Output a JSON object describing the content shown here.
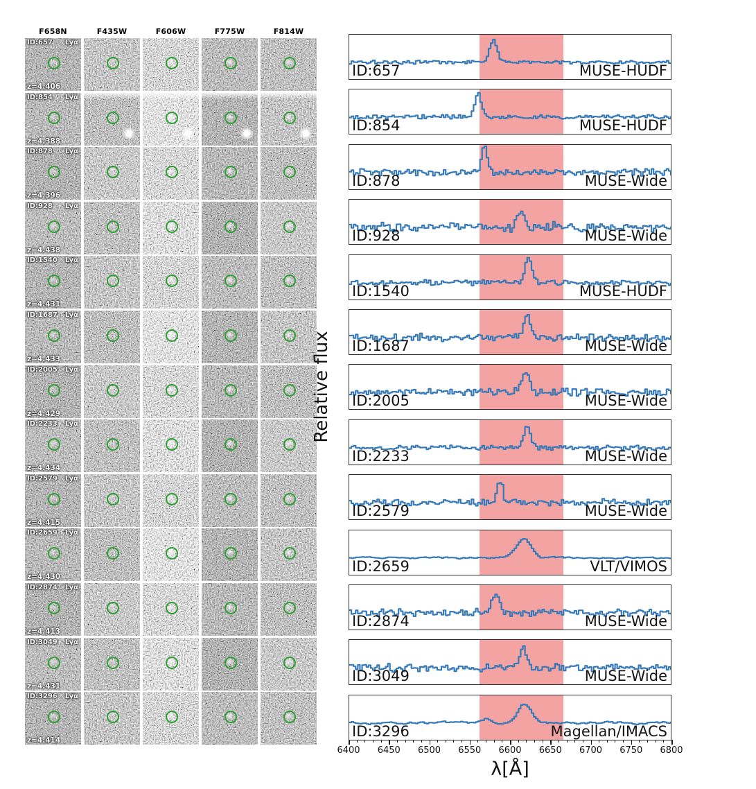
{
  "figure": {
    "left_grid": {
      "filters": [
        "F658N",
        "F435W",
        "F606W",
        "F775W",
        "F814W"
      ],
      "line_label": "Lyα",
      "marker_color": "#2f9e33",
      "rows": [
        {
          "id": "ID:657",
          "z": "z=4.406"
        },
        {
          "id": "ID:854",
          "z": "z=4.388"
        },
        {
          "id": "ID:878",
          "z": "z=4.396"
        },
        {
          "id": "ID:928",
          "z": "z=4.438"
        },
        {
          "id": "ID:1540",
          "z": "z=4.431"
        },
        {
          "id": "ID:1687",
          "z": "z=4.433"
        },
        {
          "id": "ID:2005",
          "z": "z=4.429"
        },
        {
          "id": "ID:2233",
          "z": "z=4.434"
        },
        {
          "id": "ID:2579",
          "z": "z=4.415"
        },
        {
          "id": "ID:2659",
          "z": "z=4.430"
        },
        {
          "id": "ID:2874",
          "z": "z=4.413"
        },
        {
          "id": "ID:3049",
          "z": "z=4.431"
        },
        {
          "id": "ID:3296",
          "z": "z=4.414"
        }
      ]
    }
  },
  "chart_data": {
    "type": "line",
    "xlabel": "λ[Å]",
    "ylabel": "Relative flux",
    "x_range": [
      6400,
      6800
    ],
    "x_ticks": [
      6400,
      6450,
      6500,
      6550,
      6600,
      6650,
      6700,
      6750,
      6800
    ],
    "x_minor_tick_step": 10,
    "grid": false,
    "line_color": "#3579b8",
    "shaded_band": {
      "from": 6562,
      "to": 6666,
      "color": "#f3a3a1"
    },
    "panels": [
      {
        "id": "ID:657",
        "survey": "MUSE-HUDF",
        "peak_wavelength_A": 6578,
        "peak_rel_height": 0.52,
        "peak_sigma_A": 4.5,
        "noise_rel": 0.05,
        "profile": "step"
      },
      {
        "id": "ID:854",
        "survey": "MUSE-HUDF",
        "peak_wavelength_A": 6559,
        "peak_rel_height": 0.55,
        "peak_sigma_A": 4.0,
        "noise_rel": 0.055,
        "profile": "step"
      },
      {
        "id": "ID:878",
        "survey": "MUSE-Wide",
        "peak_wavelength_A": 6567,
        "peak_rel_height": 0.62,
        "peak_sigma_A": 3.5,
        "noise_rel": 0.095,
        "profile": "step"
      },
      {
        "id": "ID:928",
        "survey": "MUSE-Wide",
        "peak_wavelength_A": 6613,
        "peak_rel_height": 0.4,
        "peak_sigma_A": 4.0,
        "noise_rel": 0.125,
        "profile": "step"
      },
      {
        "id": "ID:1540",
        "survey": "MUSE-HUDF",
        "peak_wavelength_A": 6622,
        "peak_rel_height": 0.6,
        "peak_sigma_A": 4.0,
        "noise_rel": 0.07,
        "profile": "step"
      },
      {
        "id": "ID:1687",
        "survey": "MUSE-Wide",
        "peak_wavelength_A": 6620,
        "peak_rel_height": 0.5,
        "peak_sigma_A": 4.0,
        "noise_rel": 0.1,
        "profile": "step"
      },
      {
        "id": "ID:2005",
        "survey": "MUSE-Wide",
        "peak_wavelength_A": 6618,
        "peak_rel_height": 0.48,
        "peak_sigma_A": 5.0,
        "noise_rel": 0.1,
        "profile": "step"
      },
      {
        "id": "ID:2233",
        "survey": "MUSE-Wide",
        "peak_wavelength_A": 6620,
        "peak_rel_height": 0.52,
        "peak_sigma_A": 4.0,
        "noise_rel": 0.065,
        "profile": "step"
      },
      {
        "id": "ID:2579",
        "survey": "MUSE-Wide",
        "peak_wavelength_A": 6586,
        "peak_rel_height": 0.5,
        "peak_sigma_A": 3.5,
        "noise_rel": 0.09,
        "profile": "step"
      },
      {
        "id": "ID:2659",
        "survey": "VLT/VIMOS",
        "peak_wavelength_A": 6616,
        "peak_rel_height": 0.44,
        "peak_sigma_A": 9.0,
        "noise_rel": 0.025,
        "profile": "smooth"
      },
      {
        "id": "ID:2874",
        "survey": "MUSE-Wide",
        "peak_wavelength_A": 6581,
        "peak_rel_height": 0.45,
        "peak_sigma_A": 5.0,
        "noise_rel": 0.1,
        "profile": "step"
      },
      {
        "id": "ID:3049",
        "survey": "MUSE-Wide",
        "peak_wavelength_A": 6615,
        "peak_rel_height": 0.5,
        "peak_sigma_A": 4.0,
        "noise_rel": 0.105,
        "profile": "step"
      },
      {
        "id": "ID:3296",
        "survey": "Magellan/IMACS",
        "peak_wavelength_A": 6617,
        "peak_rel_height": 0.42,
        "peak_sigma_A": 8.0,
        "noise_rel": 0.035,
        "profile": "smooth",
        "secondary_peak_wavelength_A": 6570,
        "secondary_peak_rel_height": 0.1,
        "secondary_peak_sigma_A": 5.0
      }
    ]
  }
}
